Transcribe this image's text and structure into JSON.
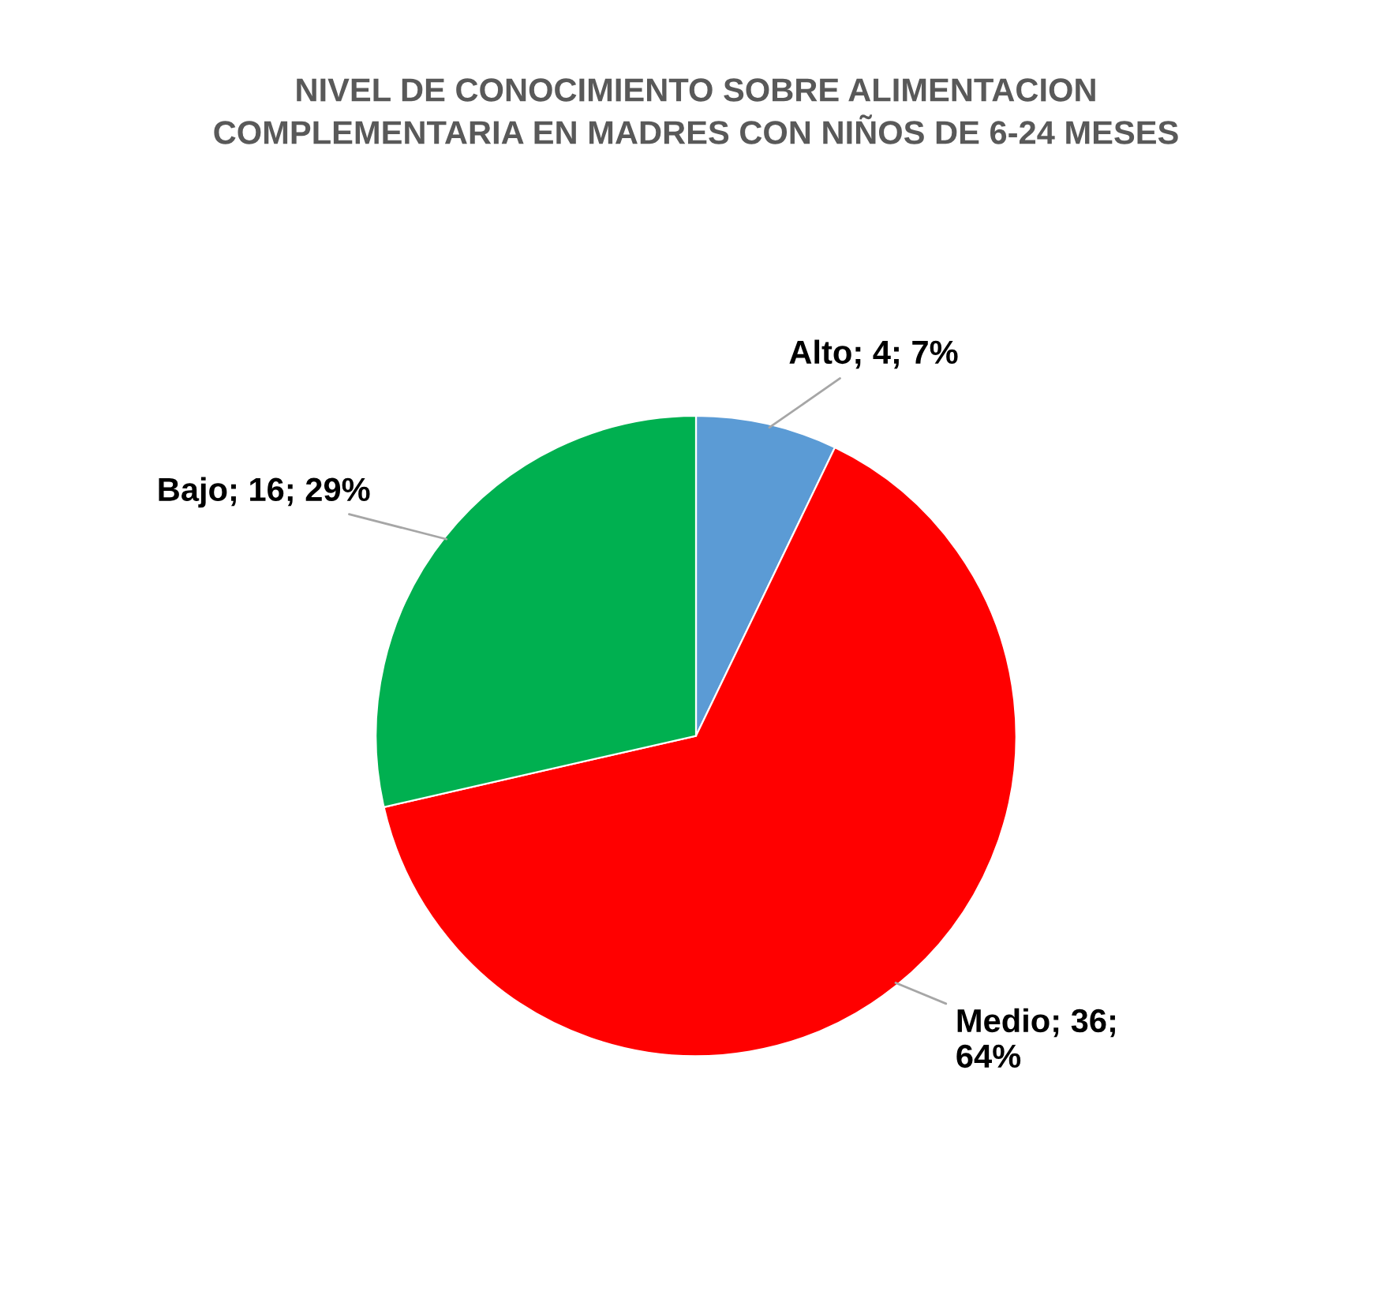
{
  "chart_data": {
    "type": "pie",
    "title": "NIVEL DE CONOCIMIENTO SOBRE ALIMENTACION\nCOMPLEMENTARIA EN MADRES CON NIÑOS DE 6-24 MESES",
    "categories": [
      "Alto; 4; 7%",
      "Medio; 36;\n64%",
      "Bajo; 16; 29%"
    ],
    "values": [
      4,
      36,
      16
    ],
    "colors": [
      "#5b9bd5",
      "#ff0000",
      "#00b050"
    ]
  }
}
